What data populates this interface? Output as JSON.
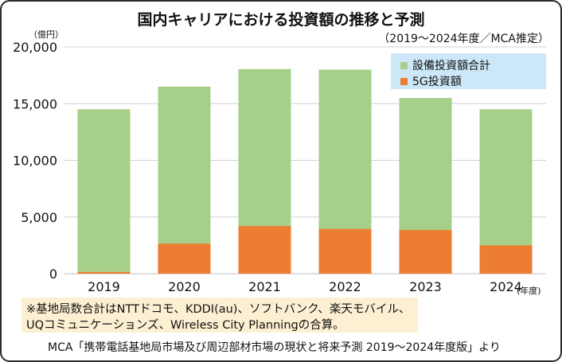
{
  "header": {
    "title": "国内キャリアにおける投資額の推移と予測",
    "subtitle": "（2019～2024年度／MCA推定）"
  },
  "axis": {
    "y_unit": "（億円）",
    "x_unit": "(年度)"
  },
  "legend": {
    "total_label": "設備投資額合計",
    "g5_label": "5G投資額"
  },
  "note": {
    "line1": "※基地局数合計はNTTドコモ、KDDI(au)、ソフトバンク、楽天モバイル、",
    "line2": "UQコミュニケーションズ、Wireless City Planningの合算。"
  },
  "source": "MCA「携帯電話基地局市場及び周辺部材市場の現状と将来予測 2019～2024年度版」より",
  "colors": {
    "total": "#a6d08a",
    "g5": "#ed7d31",
    "grid": "#d0d0d0",
    "legend_bg": "#cce7f7",
    "note_bg": "#fdf0d2"
  },
  "chart_data": {
    "type": "bar",
    "stacked": true,
    "title": "国内キャリアにおける投資額の推移と予測",
    "subtitle": "（2019～2024年度／MCA推定）",
    "categories": [
      "2019",
      "2020",
      "2021",
      "2022",
      "2023",
      "2024"
    ],
    "series": [
      {
        "name": "5G投資額",
        "values": [
          150,
          2650,
          4200,
          3950,
          3850,
          2500
        ]
      },
      {
        "name": "設備投資額合計",
        "values": [
          14500,
          16500,
          18050,
          18000,
          15500,
          14500
        ]
      }
    ],
    "ylabel": "（億円）",
    "xlabel": "(年度)",
    "ylim": [
      0,
      20000
    ],
    "yticks": [
      "0",
      "5,000",
      "10,000",
      "15,000",
      "20,000"
    ],
    "grid": true,
    "legend_position": "top-right"
  }
}
